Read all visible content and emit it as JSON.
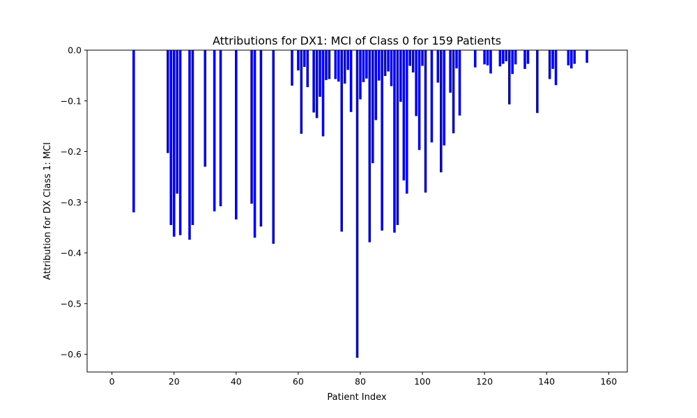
{
  "chart_data": {
    "type": "bar",
    "title": "Attributions for DX1: MCI of Class 0 for 159 Patients",
    "xlabel": "Patient Index",
    "ylabel": "Attribution for DX Class 1: MCI",
    "xlim": [
      -8,
      166
    ],
    "ylim": [
      -0.635,
      0.0
    ],
    "xticks": [
      0,
      20,
      40,
      60,
      80,
      100,
      120,
      140,
      160
    ],
    "yticks": [
      0.0,
      -0.1,
      -0.2,
      -0.3,
      -0.4,
      -0.5,
      -0.6
    ],
    "ytick_labels": [
      "0.0",
      "−0.1",
      "−0.2",
      "−0.3",
      "−0.4",
      "−0.5",
      "−0.6"
    ],
    "bar_color": "#0000ff",
    "grid": false,
    "x": [
      7,
      18,
      19,
      20,
      21,
      22,
      25,
      26,
      30,
      33,
      35,
      40,
      45,
      46,
      48,
      52,
      58,
      60,
      61,
      62,
      63,
      65,
      66,
      67,
      68,
      69,
      70,
      72,
      73,
      74,
      75,
      76,
      77,
      79,
      80,
      81,
      82,
      83,
      84,
      85,
      86,
      87,
      88,
      89,
      90,
      91,
      92,
      93,
      94,
      95,
      96,
      97,
      98,
      99,
      100,
      101,
      103,
      105,
      106,
      107,
      109,
      110,
      111,
      112,
      117,
      120,
      121,
      122,
      125,
      126,
      127,
      128,
      129,
      130,
      133,
      134,
      137,
      141,
      142,
      143,
      147,
      148,
      149,
      153
    ],
    "values": [
      -0.32,
      -0.203,
      -0.345,
      -0.368,
      -0.283,
      -0.365,
      -0.374,
      -0.345,
      -0.23,
      -0.318,
      -0.308,
      -0.334,
      -0.303,
      -0.37,
      -0.348,
      -0.382,
      -0.07,
      -0.04,
      -0.165,
      -0.033,
      -0.073,
      -0.123,
      -0.134,
      -0.092,
      -0.17,
      -0.059,
      -0.057,
      -0.057,
      -0.062,
      -0.358,
      -0.066,
      -0.039,
      -0.122,
      -0.607,
      -0.097,
      -0.063,
      -0.056,
      -0.379,
      -0.223,
      -0.138,
      -0.06,
      -0.356,
      -0.051,
      -0.042,
      -0.071,
      -0.36,
      -0.345,
      -0.102,
      -0.257,
      -0.283,
      -0.031,
      -0.044,
      -0.13,
      -0.197,
      -0.031,
      -0.281,
      -0.182,
      -0.064,
      -0.241,
      -0.188,
      -0.084,
      -0.164,
      -0.036,
      -0.129,
      -0.034,
      -0.028,
      -0.03,
      -0.046,
      -0.032,
      -0.027,
      -0.022,
      -0.107,
      -0.047,
      -0.028,
      -0.037,
      -0.027,
      -0.124,
      -0.057,
      -0.037,
      -0.069,
      -0.03,
      -0.036,
      -0.027,
      -0.025
    ]
  }
}
